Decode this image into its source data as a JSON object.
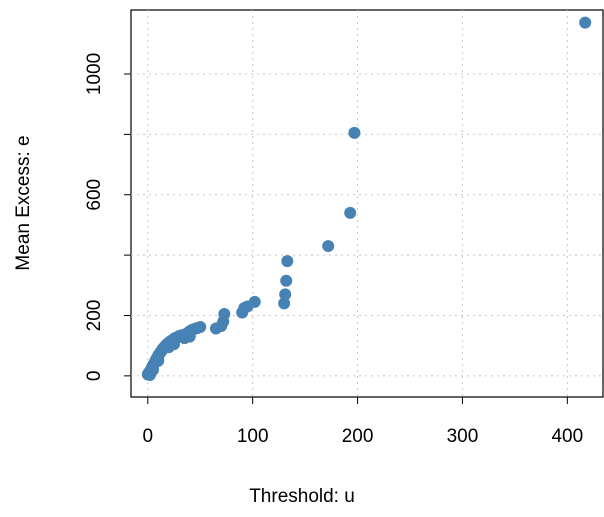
{
  "chart_data": {
    "type": "scatter",
    "x_label": "Threshold: u",
    "y_label": "Mean Excess: e",
    "x": [
      0,
      1,
      2,
      2,
      3,
      4,
      5,
      5,
      6,
      7,
      8,
      9,
      10,
      10,
      11,
      12,
      13,
      14,
      15,
      16,
      17,
      18,
      20,
      20,
      22,
      24,
      25,
      26,
      28,
      30,
      33,
      35,
      36,
      38,
      40,
      40,
      42,
      44,
      47,
      50,
      65,
      70,
      72,
      73,
      90,
      92,
      95,
      102,
      130,
      131,
      132,
      133,
      172,
      193,
      197,
      417
    ],
    "y": [
      5,
      10,
      15,
      3,
      20,
      28,
      35,
      20,
      40,
      48,
      55,
      60,
      68,
      50,
      72,
      78,
      82,
      88,
      92,
      96,
      100,
      104,
      110,
      95,
      115,
      120,
      105,
      125,
      128,
      132,
      135,
      125,
      138,
      142,
      148,
      130,
      152,
      155,
      158,
      162,
      157,
      165,
      180,
      205,
      210,
      225,
      230,
      245,
      240,
      270,
      315,
      380,
      430,
      540,
      805,
      1170
    ],
    "color": "#4682b4",
    "xlim": [
      -16,
      434
    ],
    "xticks": [
      0,
      100,
      200,
      300,
      400
    ],
    "ylim": [
      -70,
      1212
    ],
    "yticks": [
      0,
      200,
      {
        "value": 400,
        "label": null
      },
      600,
      {
        "value": 800,
        "label": null
      },
      1000
    ],
    "grid": true
  }
}
